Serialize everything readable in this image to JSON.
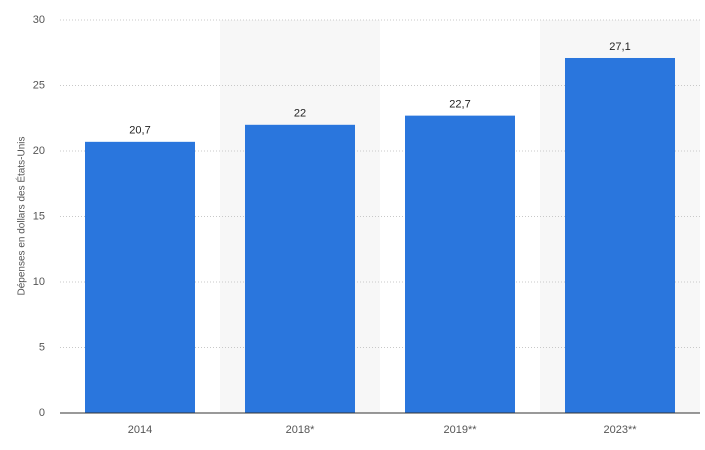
{
  "chart_data": {
    "type": "bar",
    "y_axis_label": "Dépenses en dollars des États-Unis",
    "categories": [
      "2014",
      "2018*",
      "2019**",
      "2023**"
    ],
    "values": [
      20.7,
      22,
      22.7,
      27.1
    ],
    "value_labels": [
      "20,7",
      "22",
      "22,7",
      "27,1"
    ],
    "color": "#2a76dd",
    "ylim": [
      0,
      30
    ],
    "yticks": [
      0,
      5,
      10,
      15,
      20,
      25,
      30
    ],
    "grid": true
  }
}
